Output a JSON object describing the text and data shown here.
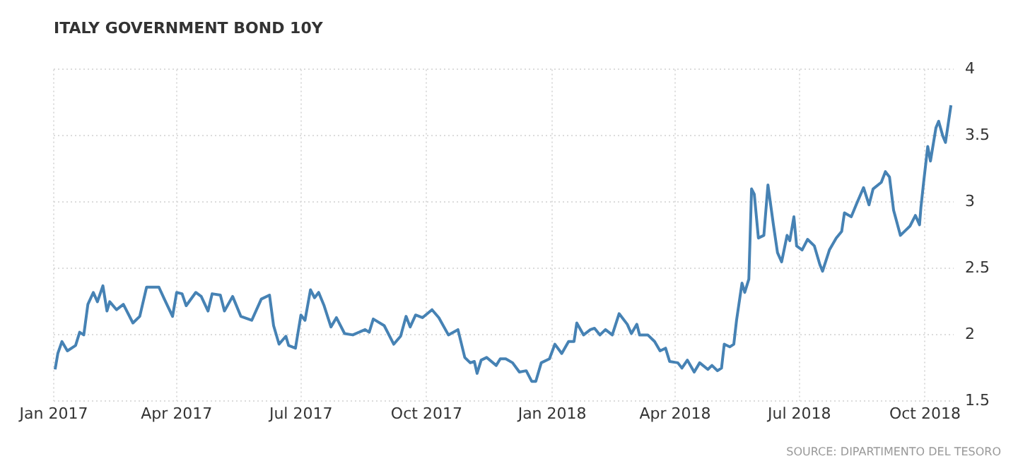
{
  "chart_data": {
    "type": "line",
    "title": "ITALY GOVERNMENT BOND 10Y",
    "annotations": [
      "SOURCE: DIPARTIMENTO DEL TESORO"
    ],
    "x": [
      "2017-01-02",
      "2017-01-04",
      "2017-01-07",
      "2017-01-11",
      "2017-01-17",
      "2017-01-20",
      "2017-01-23",
      "2017-01-26",
      "2017-01-30",
      "2017-02-02",
      "2017-02-06",
      "2017-02-09",
      "2017-02-11",
      "2017-02-16",
      "2017-02-21",
      "2017-02-28",
      "2017-03-05",
      "2017-03-10",
      "2017-03-19",
      "2017-03-23",
      "2017-03-29",
      "2017-04-01",
      "2017-04-05",
      "2017-04-08",
      "2017-04-15",
      "2017-04-19",
      "2017-04-24",
      "2017-04-27",
      "2017-05-03",
      "2017-05-06",
      "2017-05-12",
      "2017-05-18",
      "2017-05-26",
      "2017-06-02",
      "2017-06-08",
      "2017-06-11",
      "2017-06-15",
      "2017-06-20",
      "2017-06-22",
      "2017-06-27",
      "2017-07-01",
      "2017-07-04",
      "2017-07-08",
      "2017-07-11",
      "2017-07-14",
      "2017-07-18",
      "2017-07-23",
      "2017-07-27",
      "2017-08-02",
      "2017-08-08",
      "2017-08-17",
      "2017-08-20",
      "2017-08-23",
      "2017-08-31",
      "2017-09-07",
      "2017-09-12",
      "2017-09-16",
      "2017-09-19",
      "2017-09-23",
      "2017-09-28",
      "2017-10-05",
      "2017-10-10",
      "2017-10-17",
      "2017-10-24",
      "2017-10-29",
      "2017-11-02",
      "2017-11-05",
      "2017-11-07",
      "2017-11-10",
      "2017-11-14",
      "2017-11-21",
      "2017-11-24",
      "2017-11-28",
      "2017-12-03",
      "2017-12-08",
      "2017-12-13",
      "2017-12-17",
      "2017-12-20",
      "2017-12-24",
      "2017-12-30",
      "2018-01-03",
      "2018-01-08",
      "2018-01-13",
      "2018-01-17",
      "2018-01-19",
      "2018-01-24",
      "2018-01-29",
      "2018-02-01",
      "2018-02-05",
      "2018-02-09",
      "2018-02-14",
      "2018-02-19",
      "2018-02-25",
      "2018-02-28",
      "2018-03-04",
      "2018-03-06",
      "2018-03-12",
      "2018-03-17",
      "2018-03-21",
      "2018-03-25",
      "2018-03-28",
      "2018-04-03",
      "2018-04-06",
      "2018-04-10",
      "2018-04-15",
      "2018-04-19",
      "2018-04-25",
      "2018-04-28",
      "2018-05-02",
      "2018-05-05",
      "2018-05-07",
      "2018-05-11",
      "2018-05-14",
      "2018-05-16",
      "2018-05-20",
      "2018-05-22",
      "2018-05-25",
      "2018-05-27",
      "2018-05-29",
      "2018-06-01",
      "2018-06-05",
      "2018-06-08",
      "2018-06-12",
      "2018-06-15",
      "2018-06-18",
      "2018-06-22",
      "2018-06-24",
      "2018-06-27",
      "2018-06-29",
      "2018-07-03",
      "2018-07-07",
      "2018-07-12",
      "2018-07-16",
      "2018-07-18",
      "2018-07-23",
      "2018-07-28",
      "2018-08-01",
      "2018-08-03",
      "2018-08-08",
      "2018-08-12",
      "2018-08-17",
      "2018-08-21",
      "2018-08-24",
      "2018-08-30",
      "2018-09-02",
      "2018-09-05",
      "2018-09-08",
      "2018-09-13",
      "2018-09-17",
      "2018-09-20",
      "2018-09-24",
      "2018-09-27",
      "2018-09-28",
      "2018-09-30",
      "2018-10-03",
      "2018-10-05",
      "2018-10-09",
      "2018-10-11",
      "2018-10-14",
      "2018-10-16",
      "2018-10-20"
    ],
    "series": [
      {
        "color": "#4682b4",
        "values": [
          1.74,
          1.86,
          1.95,
          1.88,
          1.92,
          2.02,
          2.0,
          2.23,
          2.32,
          2.25,
          2.37,
          2.18,
          2.25,
          2.19,
          2.23,
          2.09,
          2.14,
          2.36,
          2.36,
          2.27,
          2.14,
          2.32,
          2.31,
          2.22,
          2.32,
          2.29,
          2.18,
          2.31,
          2.3,
          2.18,
          2.29,
          2.14,
          2.11,
          2.27,
          2.3,
          2.07,
          1.93,
          1.99,
          1.92,
          1.9,
          2.15,
          2.11,
          2.34,
          2.28,
          2.32,
          2.22,
          2.06,
          2.13,
          2.01,
          2.0,
          2.04,
          2.02,
          2.12,
          2.07,
          1.93,
          1.99,
          2.14,
          2.06,
          2.15,
          2.13,
          2.19,
          2.13,
          2.0,
          2.04,
          1.83,
          1.79,
          1.8,
          1.71,
          1.81,
          1.83,
          1.77,
          1.82,
          1.82,
          1.79,
          1.72,
          1.73,
          1.65,
          1.65,
          1.79,
          1.82,
          1.93,
          1.86,
          1.95,
          1.95,
          2.09,
          2.0,
          2.04,
          2.05,
          2.0,
          2.04,
          2.0,
          2.16,
          2.08,
          2.01,
          2.08,
          2.0,
          2.0,
          1.95,
          1.88,
          1.9,
          1.8,
          1.79,
          1.75,
          1.81,
          1.72,
          1.79,
          1.74,
          1.77,
          1.73,
          1.75,
          1.93,
          1.91,
          1.93,
          2.11,
          2.39,
          2.32,
          2.42,
          3.1,
          3.06,
          2.73,
          2.75,
          3.13,
          2.83,
          2.62,
          2.55,
          2.75,
          2.71,
          2.89,
          2.67,
          2.64,
          2.72,
          2.67,
          2.53,
          2.48,
          2.64,
          2.73,
          2.78,
          2.92,
          2.89,
          2.99,
          3.11,
          2.98,
          3.1,
          3.15,
          3.23,
          3.19,
          2.94,
          2.75,
          2.79,
          2.82,
          2.9,
          2.83,
          2.96,
          3.15,
          3.42,
          3.31,
          3.56,
          3.61,
          3.5,
          3.45,
          3.73
        ]
      }
    ],
    "xlim": [
      "2017-01-01",
      "2018-10-22"
    ],
    "xticks": [
      {
        "value": "2017-01-01",
        "label": "Jan 2017"
      },
      {
        "value": "2017-04-01",
        "label": "Apr 2017"
      },
      {
        "value": "2017-07-01",
        "label": "Jul 2017"
      },
      {
        "value": "2017-10-01",
        "label": "Oct 2017"
      },
      {
        "value": "2018-01-01",
        "label": "Jan 2018"
      },
      {
        "value": "2018-04-01",
        "label": "Apr 2018"
      },
      {
        "value": "2018-07-01",
        "label": "Jul 2018"
      },
      {
        "value": "2018-10-01",
        "label": "Oct 2018"
      }
    ],
    "ylim": [
      1.5,
      4
    ],
    "yticks": [
      1.5,
      2,
      2.5,
      3,
      3.5,
      4
    ],
    "grid": true,
    "marker": "none",
    "line_style": "solid"
  }
}
